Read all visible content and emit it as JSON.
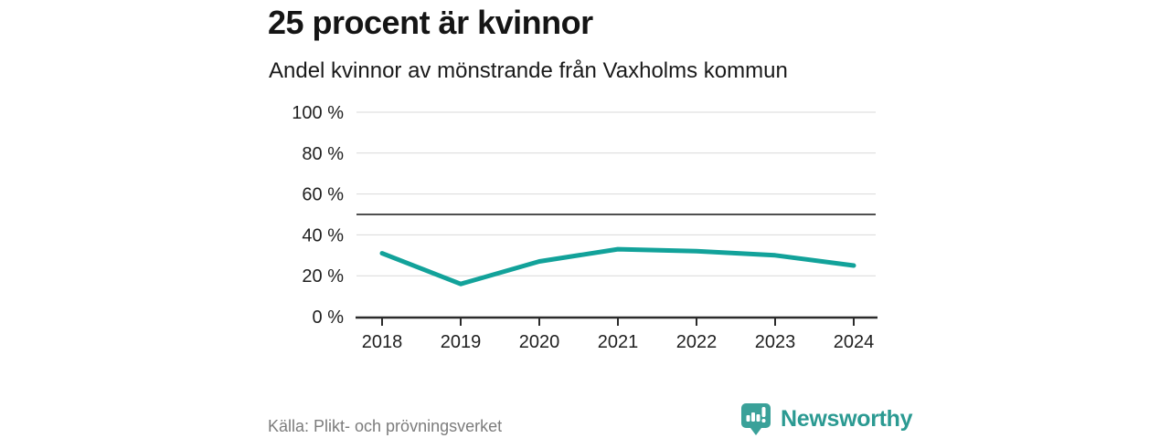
{
  "header": {
    "title": "25 procent är kvinnor",
    "subtitle": "Andel kvinnor av mönstrande från Vaxholms kommun"
  },
  "chart_data": {
    "type": "line",
    "title": "25 procent är kvinnor",
    "subtitle": "Andel kvinnor av mönstrande från Vaxholms kommun",
    "categories": [
      "2018",
      "2019",
      "2020",
      "2021",
      "2022",
      "2023",
      "2024"
    ],
    "series": [
      {
        "name": "Andel kvinnor av mönstrande",
        "values": [
          31,
          16,
          27,
          33,
          32,
          30,
          25
        ]
      }
    ],
    "unit": "%",
    "xlabel": "",
    "ylabel": "",
    "ylim": [
      0,
      100
    ],
    "y_ticks": [
      0,
      20,
      40,
      60,
      80,
      100
    ],
    "y_tick_labels": [
      "0 %",
      "20 %",
      "40 %",
      "60 %",
      "80 %",
      "100 %"
    ],
    "reference_line": {
      "value": 50
    },
    "grid": true,
    "legend": false,
    "colors": {
      "line": "#12a29a",
      "grid": "#d9d9d9",
      "reference": "#4f4f4f",
      "axis": "#2b2b2b",
      "tick_text": "#1f1f1f"
    }
  },
  "footer": {
    "source": "Källa: Plikt- och prövningsverket",
    "brand": "Newsworthy",
    "brand_color": "#2b9a92",
    "logo_icon": "newsworthy-logo-icon",
    "logo_teal": "#3aa199"
  }
}
